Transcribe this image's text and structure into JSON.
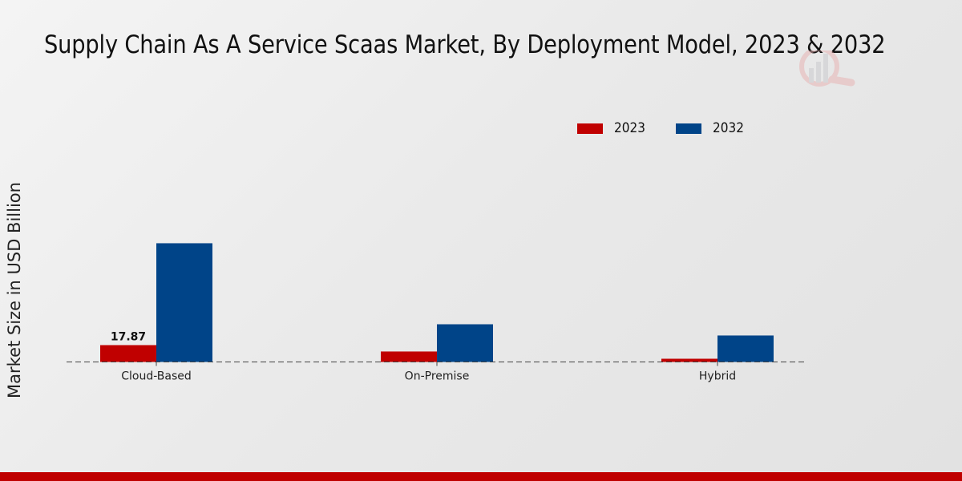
{
  "chart_data": {
    "type": "bar",
    "title": "Supply Chain As A Service Scaas Market, By Deployment Model, 2023 & 2032",
    "xlabel": "",
    "ylabel": "Market Size in USD Billion",
    "categories": [
      "Cloud-Based",
      "On-Premise",
      "Hybrid"
    ],
    "series": [
      {
        "name": "2023",
        "color": "#c00000",
        "values": [
          17.87,
          11.1,
          3.4
        ]
      },
      {
        "name": "2032",
        "color": "#004488",
        "values": [
          126.0,
          40.0,
          28.1
        ]
      }
    ],
    "data_labels": [
      {
        "series": "2023",
        "category": "Cloud-Based",
        "text": "17.87"
      }
    ],
    "ylim": [
      0,
      140
    ],
    "grid": false,
    "legend_position": "top-right"
  },
  "brand": {
    "accent_color": "#bf0000",
    "watermark_icon": "magnifier-bar-chart-logo-icon"
  }
}
